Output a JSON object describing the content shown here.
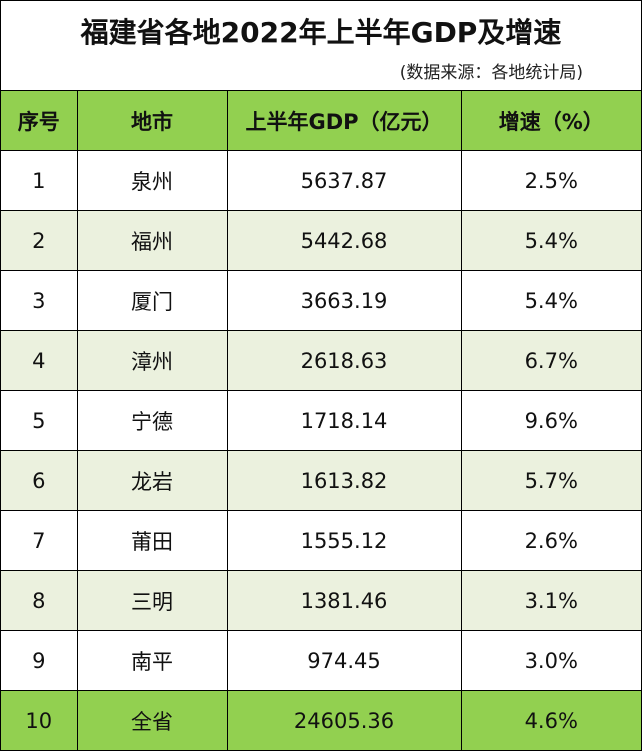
{
  "title": "福建省各地2022年上半年GDP及增速",
  "subtitle": "(数据来源：各地统计局)",
  "colors": {
    "header_bg": "#92D050",
    "alt_row_bg": "#EBF1DE",
    "total_row_bg": "#92D050",
    "border": "#000000"
  },
  "table": {
    "headers": [
      "序号",
      "地市",
      "上半年GDP（亿元）",
      "增速（%）"
    ],
    "rows": [
      {
        "no": "1",
        "city": "泉州",
        "gdp": "5637.87",
        "growth": "2.5%"
      },
      {
        "no": "2",
        "city": "福州",
        "gdp": "5442.68",
        "growth": "5.4%"
      },
      {
        "no": "3",
        "city": "厦门",
        "gdp": "3663.19",
        "growth": "5.4%"
      },
      {
        "no": "4",
        "city": "漳州",
        "gdp": "2618.63",
        "growth": "6.7%"
      },
      {
        "no": "5",
        "city": "宁德",
        "gdp": "1718.14",
        "growth": "9.6%"
      },
      {
        "no": "6",
        "city": "龙岩",
        "gdp": "1613.82",
        "growth": "5.7%"
      },
      {
        "no": "7",
        "city": "莆田",
        "gdp": "1555.12",
        "growth": "2.6%"
      },
      {
        "no": "8",
        "city": "三明",
        "gdp": "1381.46",
        "growth": "3.1%"
      },
      {
        "no": "9",
        "city": "南平",
        "gdp": "974.45",
        "growth": "3.0%"
      },
      {
        "no": "10",
        "city": "全省",
        "gdp": "24605.36",
        "growth": "4.6%"
      }
    ]
  }
}
